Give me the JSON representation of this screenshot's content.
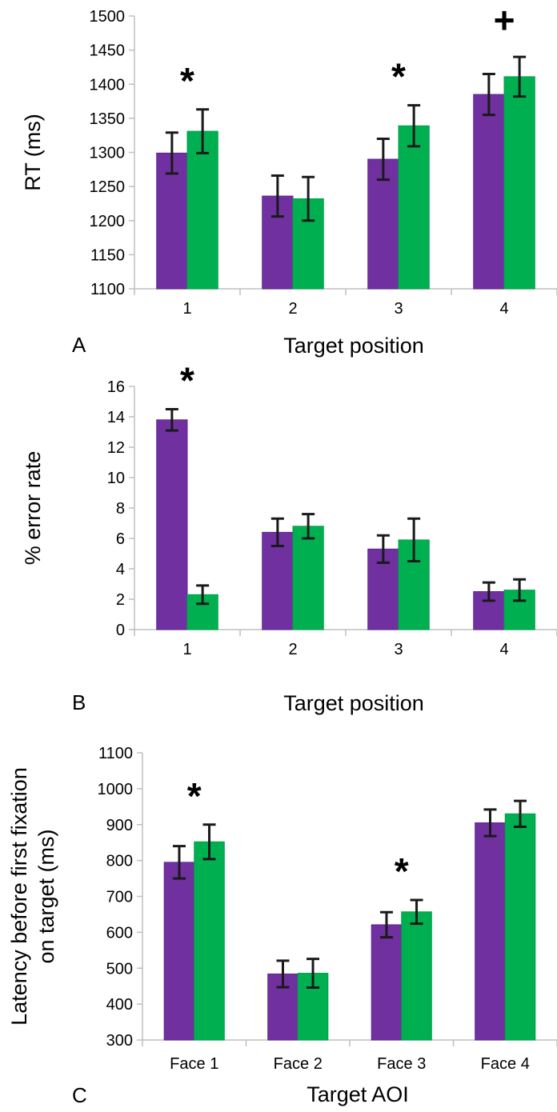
{
  "colors": {
    "series_a": "#7030a0",
    "series_b": "#00b050"
  },
  "chart_data": [
    {
      "type": "bar",
      "panel_label": "A",
      "xlabel": "Target position",
      "ylabel": "RT (ms)",
      "categories": [
        "1",
        "2",
        "3",
        "4"
      ],
      "ylim": [
        1100,
        1500
      ],
      "yticks": [
        "1100",
        "1150",
        "1200",
        "1250",
        "1300",
        "1350",
        "1400",
        "1450",
        "1500"
      ],
      "grid": false,
      "series": [
        {
          "values": [
            1299,
            1236,
            1290,
            1385
          ],
          "errors": [
            30,
            30,
            30,
            30
          ]
        },
        {
          "values": [
            1331,
            1232,
            1339,
            1411
          ],
          "errors": [
            32,
            32,
            30,
            29
          ]
        }
      ],
      "annotations": [
        {
          "category_index": 0,
          "text": "*"
        },
        {
          "category_index": 2,
          "text": "*"
        },
        {
          "category_index": 3,
          "text": "+"
        }
      ]
    },
    {
      "type": "bar",
      "panel_label": "B",
      "xlabel": "Target position",
      "ylabel": "% error rate",
      "categories": [
        "1",
        "2",
        "3",
        "4"
      ],
      "ylim": [
        0,
        16
      ],
      "yticks": [
        "0",
        "2",
        "4",
        "6",
        "8",
        "10",
        "12",
        "14",
        "16"
      ],
      "grid": false,
      "series": [
        {
          "values": [
            13.8,
            6.4,
            5.3,
            2.5
          ],
          "errors": [
            0.7,
            0.9,
            0.9,
            0.6
          ]
        },
        {
          "values": [
            2.3,
            6.8,
            5.9,
            2.6
          ],
          "errors": [
            0.6,
            0.8,
            1.4,
            0.7
          ]
        }
      ],
      "annotations": [
        {
          "category_index": 0,
          "text": "*"
        }
      ]
    },
    {
      "type": "bar",
      "panel_label": "C",
      "xlabel": "Target AOI",
      "ylabel": [
        "Latency before first fixation",
        "on target (ms)"
      ],
      "categories": [
        "Face 1",
        "Face 2",
        "Face 3",
        "Face 4"
      ],
      "ylim": [
        300,
        1100
      ],
      "yticks": [
        "300",
        "400",
        "500",
        "600",
        "700",
        "800",
        "900",
        "1000",
        "1100"
      ],
      "grid": false,
      "series": [
        {
          "values": [
            795,
            484,
            621,
            905
          ],
          "errors": [
            45,
            37,
            35,
            37
          ]
        },
        {
          "values": [
            852,
            486,
            657,
            930
          ],
          "errors": [
            48,
            40,
            33,
            36
          ]
        }
      ],
      "annotations": [
        {
          "category_index": 0,
          "text": "*"
        },
        {
          "category_index": 2,
          "text": "*"
        }
      ]
    }
  ]
}
